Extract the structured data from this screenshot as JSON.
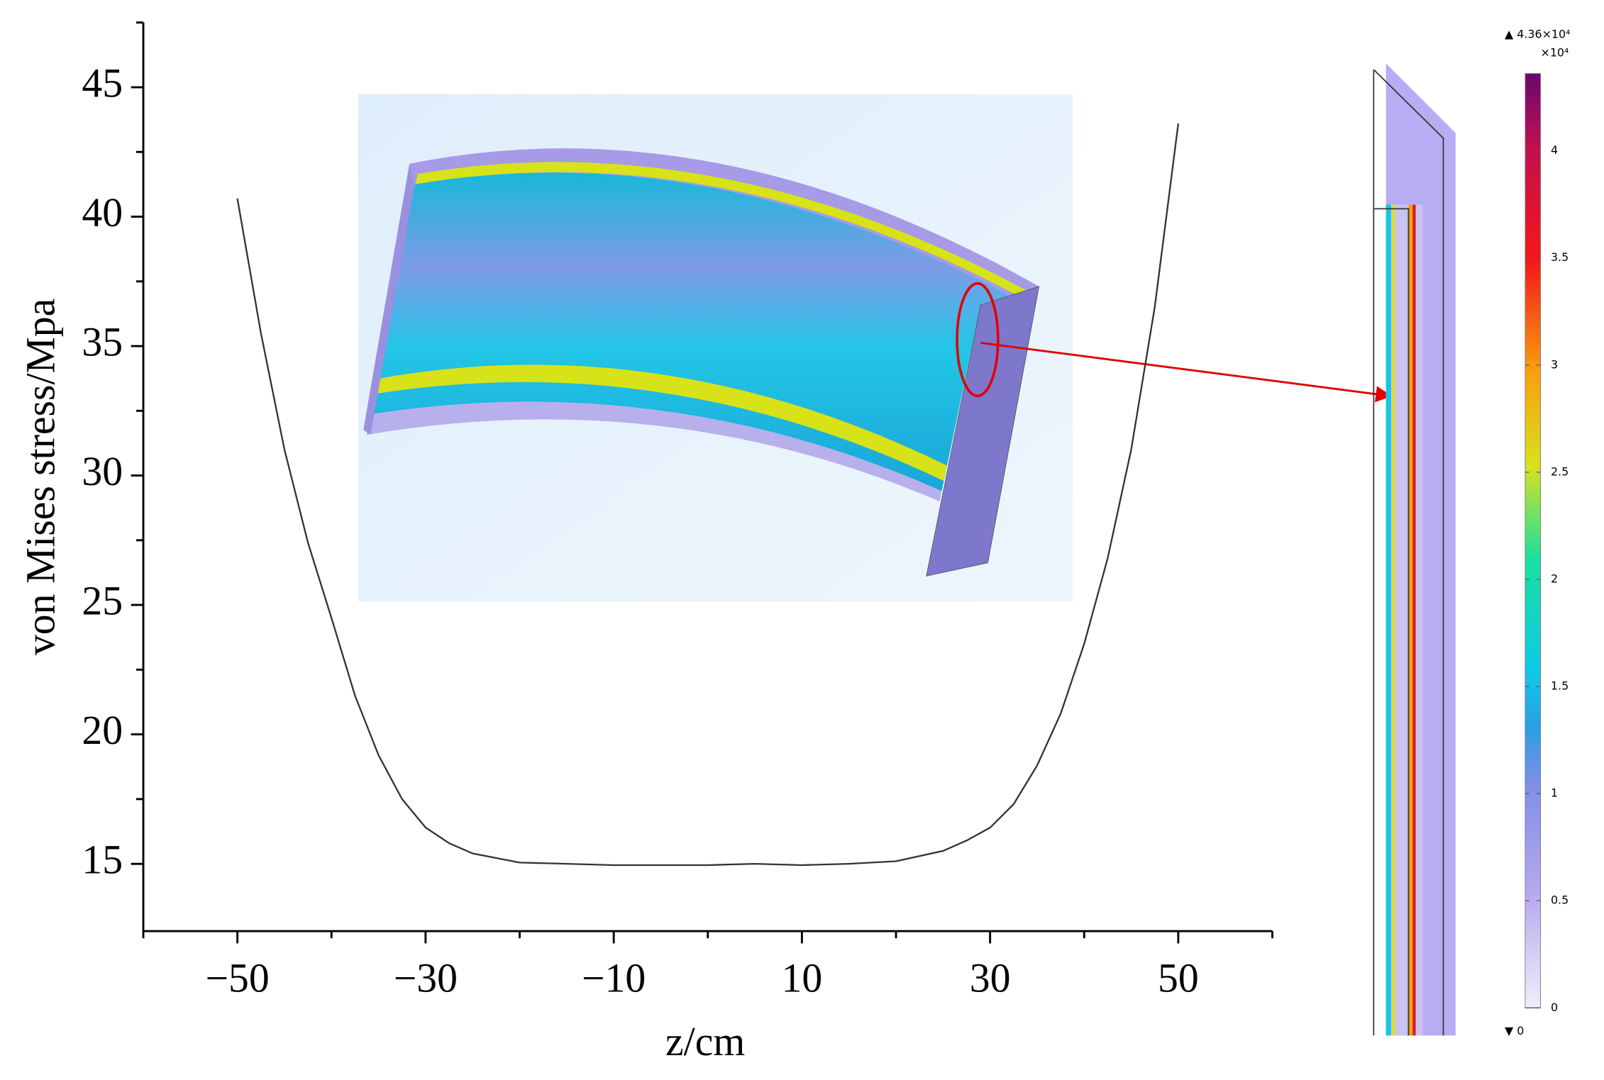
{
  "chart_data": {
    "type": "line",
    "x_label": "z/cm",
    "y_label": "von Mises stress/Mpa",
    "x": [
      -50,
      -47.5,
      -45,
      -42.5,
      -40,
      -37.5,
      -35,
      -32.5,
      -30,
      -27.5,
      -25,
      -20,
      -15,
      -10,
      -5,
      0,
      5,
      10,
      15,
      20,
      25,
      27.5,
      30,
      32.5,
      35,
      37.5,
      40,
      42.5,
      45,
      47.5,
      50
    ],
    "values": [
      40.7,
      35.5,
      31.0,
      27.4,
      24.5,
      21.5,
      19.2,
      17.5,
      16.4,
      15.8,
      15.4,
      15.05,
      15.0,
      14.95,
      14.95,
      14.95,
      15.0,
      14.95,
      15.0,
      15.1,
      15.5,
      15.9,
      16.4,
      17.3,
      18.8,
      20.8,
      23.5,
      26.8,
      31.0,
      36.5,
      43.6
    ],
    "color": "#333333",
    "xlim": [
      -60,
      60
    ],
    "xticks": [
      {
        "value": -50,
        "label": "−50"
      },
      {
        "value": -30,
        "label": "−30"
      },
      {
        "value": -10,
        "label": "−10"
      },
      10,
      30,
      50
    ],
    "xminorticks": [
      -60,
      -40,
      -20,
      0,
      20,
      40,
      60
    ],
    "ylim": [
      12.4,
      47.5
    ],
    "yticks": [
      15,
      20,
      25,
      30,
      35,
      40,
      45
    ],
    "yminorticks": [
      17.5,
      22.5,
      27.5,
      32.5,
      37.5,
      42.5,
      47.5
    ],
    "grid": false,
    "colorbar": {
      "lim": [
        0,
        4.36
      ],
      "ticks": [
        0,
        0.5,
        1,
        1.5,
        2,
        2.5,
        3,
        3.5,
        4
      ],
      "max_label": "▲ 4.36×10⁴",
      "unit": "×10⁴",
      "min_label": "▼ 0"
    }
  }
}
